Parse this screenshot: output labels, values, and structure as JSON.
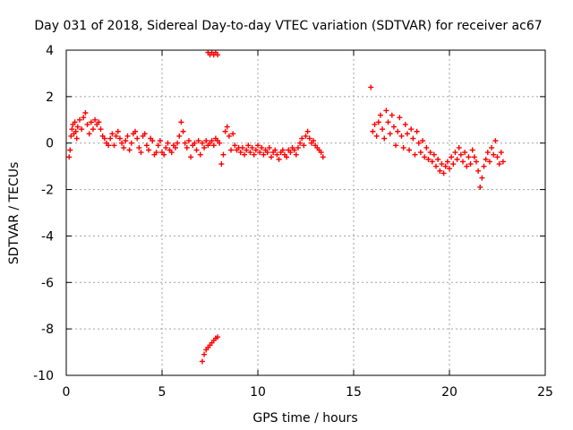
{
  "chart_data": {
    "type": "scatter",
    "title": "Day 031 of 2018, Sidereal Day-to-day VTEC variation (SDTVAR) for receiver ac67",
    "xlabel": "GPS time / hours",
    "ylabel": "SDTVAR / TECUs",
    "xlim": [
      0,
      25
    ],
    "ylim": [
      -10,
      4
    ],
    "xticks": [
      0,
      5,
      10,
      15,
      20,
      25
    ],
    "yticks": [
      -10,
      -8,
      -6,
      -4,
      -2,
      0,
      2,
      4
    ],
    "xtick_labels": [
      "0",
      "5",
      "10",
      "15",
      "20",
      "25"
    ],
    "ytick_labels": [
      "-10",
      "-8",
      "-6",
      "-4",
      "-2",
      "0",
      "2",
      "4"
    ],
    "grid": true,
    "marker": "plus",
    "color": "#ff0000",
    "series": [
      {
        "name": "SDTVAR",
        "points": [
          [
            0.15,
            -0.6
          ],
          [
            0.2,
            -0.3
          ],
          [
            0.25,
            0.3
          ],
          [
            0.3,
            0.6
          ],
          [
            0.35,
            0.8
          ],
          [
            0.4,
            0.4
          ],
          [
            0.45,
            0.9
          ],
          [
            0.5,
            0.5
          ],
          [
            0.55,
            0.2
          ],
          [
            0.6,
            0.7
          ],
          [
            0.7,
            1.0
          ],
          [
            0.8,
            0.6
          ],
          [
            0.9,
            1.1
          ],
          [
            1.0,
            1.3
          ],
          [
            1.1,
            0.8
          ],
          [
            1.2,
            0.4
          ],
          [
            1.3,
            0.9
          ],
          [
            1.4,
            0.6
          ],
          [
            1.5,
            1.0
          ],
          [
            1.6,
            0.8
          ],
          [
            1.7,
            0.9
          ],
          [
            1.8,
            0.6
          ],
          [
            1.9,
            0.3
          ],
          [
            2.0,
            0.2
          ],
          [
            2.1,
            0.0
          ],
          [
            2.2,
            -0.1
          ],
          [
            2.3,
            0.2
          ],
          [
            2.4,
            0.4
          ],
          [
            2.5,
            -0.1
          ],
          [
            2.6,
            0.3
          ],
          [
            2.7,
            0.5
          ],
          [
            2.8,
            0.2
          ],
          [
            2.9,
            0.0
          ],
          [
            3.0,
            -0.2
          ],
          [
            3.1,
            0.1
          ],
          [
            3.2,
            0.3
          ],
          [
            3.3,
            -0.3
          ],
          [
            3.4,
            0.0
          ],
          [
            3.5,
            0.4
          ],
          [
            3.6,
            0.5
          ],
          [
            3.7,
            0.2
          ],
          [
            3.8,
            -0.2
          ],
          [
            3.9,
            -0.4
          ],
          [
            4.0,
            0.3
          ],
          [
            4.1,
            0.4
          ],
          [
            4.2,
            -0.1
          ],
          [
            4.3,
            -0.3
          ],
          [
            4.4,
            0.2
          ],
          [
            4.5,
            0.1
          ],
          [
            4.6,
            -0.5
          ],
          [
            4.7,
            -0.4
          ],
          [
            4.8,
            -0.1
          ],
          [
            4.9,
            0.1
          ],
          [
            5.0,
            -0.4
          ],
          [
            5.1,
            -0.5
          ],
          [
            5.2,
            -0.2
          ],
          [
            5.3,
            0.0
          ],
          [
            5.4,
            -0.3
          ],
          [
            5.5,
            -0.4
          ],
          [
            5.6,
            -0.1
          ],
          [
            5.7,
            -0.2
          ],
          [
            5.8,
            0.0
          ],
          [
            5.9,
            0.3
          ],
          [
            6.0,
            0.9
          ],
          [
            6.1,
            0.5
          ],
          [
            6.2,
            0.0
          ],
          [
            6.3,
            -0.2
          ],
          [
            6.4,
            0.1
          ],
          [
            6.5,
            -0.6
          ],
          [
            6.6,
            -0.1
          ],
          [
            6.7,
            0.0
          ],
          [
            6.8,
            -0.3
          ],
          [
            6.9,
            0.1
          ],
          [
            7.0,
            -0.5
          ],
          [
            7.1,
            0.0
          ],
          [
            7.2,
            -0.2
          ],
          [
            7.3,
            0.1
          ],
          [
            7.4,
            -0.1
          ],
          [
            7.5,
            0.0
          ],
          [
            7.6,
            0.1
          ],
          [
            7.7,
            -0.1
          ],
          [
            7.8,
            0.2
          ],
          [
            7.9,
            0.1
          ],
          [
            8.0,
            0.0
          ],
          [
            8.1,
            -0.9
          ],
          [
            8.2,
            -0.5
          ],
          [
            8.3,
            0.5
          ],
          [
            8.4,
            0.7
          ],
          [
            8.5,
            0.3
          ],
          [
            8.6,
            -0.3
          ],
          [
            8.7,
            0.4
          ],
          [
            8.8,
            -0.1
          ],
          [
            8.9,
            -0.3
          ],
          [
            9.0,
            -0.2
          ],
          [
            9.1,
            -0.4
          ],
          [
            9.2,
            -0.2
          ],
          [
            9.3,
            -0.5
          ],
          [
            9.4,
            -0.3
          ],
          [
            9.5,
            -0.1
          ],
          [
            9.6,
            -0.4
          ],
          [
            9.7,
            -0.2
          ],
          [
            9.8,
            -0.5
          ],
          [
            9.9,
            -0.3
          ],
          [
            10.0,
            -0.1
          ],
          [
            10.1,
            -0.4
          ],
          [
            10.2,
            -0.2
          ],
          [
            10.3,
            -0.5
          ],
          [
            10.4,
            -0.3
          ],
          [
            10.5,
            -0.4
          ],
          [
            10.6,
            -0.2
          ],
          [
            10.7,
            -0.6
          ],
          [
            10.8,
            -0.4
          ],
          [
            10.9,
            -0.3
          ],
          [
            11.0,
            -0.5
          ],
          [
            11.1,
            -0.7
          ],
          [
            11.2,
            -0.4
          ],
          [
            11.3,
            -0.3
          ],
          [
            11.4,
            -0.5
          ],
          [
            11.5,
            -0.6
          ],
          [
            11.6,
            -0.3
          ],
          [
            11.7,
            -0.4
          ],
          [
            11.8,
            -0.2
          ],
          [
            11.9,
            -0.3
          ],
          [
            12.0,
            -0.5
          ],
          [
            12.1,
            -0.2
          ],
          [
            12.2,
            0.0
          ],
          [
            12.3,
            0.2
          ],
          [
            12.4,
            -0.1
          ],
          [
            12.5,
            0.3
          ],
          [
            12.6,
            0.5
          ],
          [
            12.7,
            0.2
          ],
          [
            12.8,
            0.0
          ],
          [
            12.9,
            0.1
          ],
          [
            13.0,
            -0.1
          ],
          [
            13.1,
            -0.2
          ],
          [
            13.2,
            -0.3
          ],
          [
            13.3,
            -0.4
          ],
          [
            13.4,
            -0.6
          ],
          [
            7.4,
            3.9
          ],
          [
            7.5,
            3.8
          ],
          [
            7.6,
            3.9
          ],
          [
            7.7,
            3.8
          ],
          [
            7.8,
            3.9
          ],
          [
            7.9,
            3.8
          ],
          [
            7.1,
            -9.4
          ],
          [
            7.2,
            -9.1
          ],
          [
            7.3,
            -8.9
          ],
          [
            7.4,
            -8.8
          ],
          [
            7.5,
            -8.7
          ],
          [
            7.6,
            -8.6
          ],
          [
            7.7,
            -8.5
          ],
          [
            7.8,
            -8.4
          ],
          [
            7.9,
            -8.35
          ],
          [
            15.9,
            2.4
          ],
          [
            16.0,
            0.5
          ],
          [
            16.1,
            0.8
          ],
          [
            16.2,
            0.3
          ],
          [
            16.3,
            0.9
          ],
          [
            16.4,
            1.2
          ],
          [
            16.5,
            0.6
          ],
          [
            16.6,
            0.2
          ],
          [
            16.7,
            1.4
          ],
          [
            16.8,
            0.9
          ],
          [
            16.9,
            0.4
          ],
          [
            17.0,
            1.2
          ],
          [
            17.1,
            0.7
          ],
          [
            17.2,
            -0.1
          ],
          [
            17.3,
            0.5
          ],
          [
            17.4,
            1.1
          ],
          [
            17.5,
            0.3
          ],
          [
            17.6,
            -0.2
          ],
          [
            17.7,
            0.8
          ],
          [
            17.8,
            0.4
          ],
          [
            17.9,
            -0.3
          ],
          [
            18.0,
            0.6
          ],
          [
            18.1,
            0.2
          ],
          [
            18.2,
            -0.5
          ],
          [
            18.3,
            0.5
          ],
          [
            18.4,
            0.0
          ],
          [
            18.5,
            -0.4
          ],
          [
            18.6,
            0.1
          ],
          [
            18.7,
            -0.6
          ],
          [
            18.8,
            -0.2
          ],
          [
            18.9,
            -0.7
          ],
          [
            19.0,
            -0.4
          ],
          [
            19.1,
            -0.8
          ],
          [
            19.2,
            -0.5
          ],
          [
            19.3,
            -1.0
          ],
          [
            19.4,
            -0.7
          ],
          [
            19.5,
            -1.2
          ],
          [
            19.6,
            -0.9
          ],
          [
            19.7,
            -1.3
          ],
          [
            19.8,
            -1.0
          ],
          [
            19.9,
            -0.8
          ],
          [
            20.0,
            -1.1
          ],
          [
            20.1,
            -0.6
          ],
          [
            20.2,
            -0.9
          ],
          [
            20.3,
            -0.4
          ],
          [
            20.4,
            -0.7
          ],
          [
            20.5,
            -0.2
          ],
          [
            20.6,
            -0.5
          ],
          [
            20.7,
            -0.8
          ],
          [
            20.8,
            -0.4
          ],
          [
            20.9,
            -1.0
          ],
          [
            21.0,
            -0.6
          ],
          [
            21.1,
            -0.9
          ],
          [
            21.2,
            -0.3
          ],
          [
            21.3,
            -0.6
          ],
          [
            21.4,
            -0.8
          ],
          [
            21.5,
            -1.2
          ],
          [
            21.6,
            -1.9
          ],
          [
            21.7,
            -1.5
          ],
          [
            21.8,
            -1.0
          ],
          [
            21.9,
            -0.7
          ],
          [
            22.0,
            -0.4
          ],
          [
            22.1,
            -0.8
          ],
          [
            22.2,
            -0.2
          ],
          [
            22.3,
            -0.5
          ],
          [
            22.4,
            0.1
          ],
          [
            22.5,
            -0.6
          ],
          [
            22.6,
            -0.9
          ],
          [
            22.7,
            -0.4
          ],
          [
            22.8,
            -0.8
          ]
        ]
      }
    ]
  }
}
